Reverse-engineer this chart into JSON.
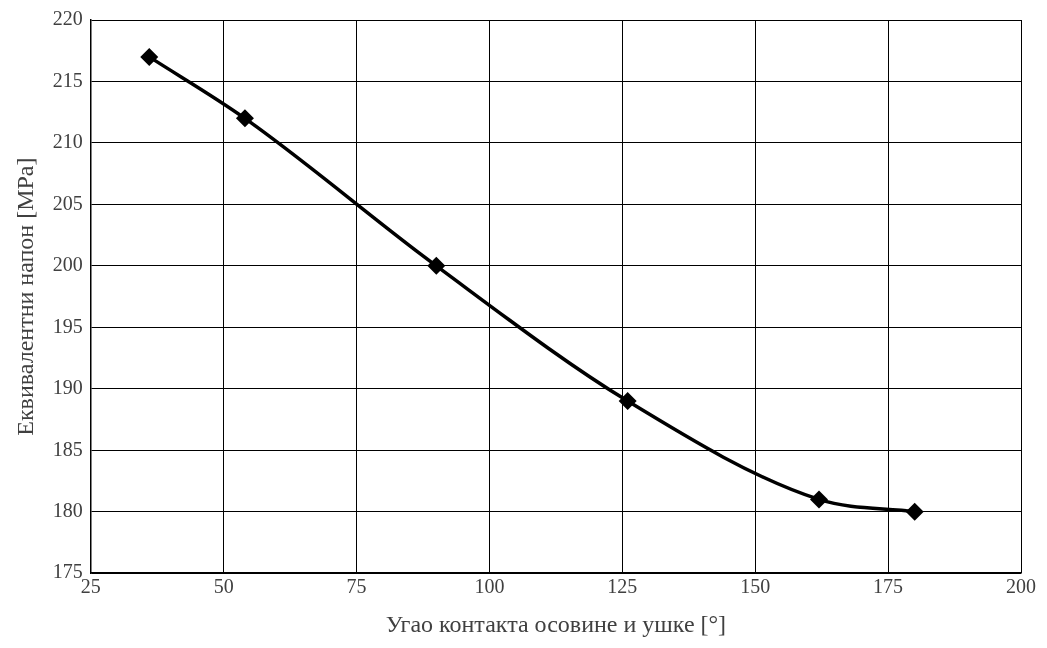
{
  "chart_data": {
    "type": "line",
    "xlabel": "Угао контакта осовине и ушке [°]",
    "ylabel": "Еквивалентни напон [MPa]",
    "x": [
      36,
      54,
      90,
      126,
      162,
      180
    ],
    "series": [
      {
        "color": "#000000",
        "values": [
          217,
          212,
          200,
          189,
          181,
          180
        ]
      }
    ],
    "xlim": [
      25,
      200
    ],
    "xticks": [
      25,
      50,
      75,
      100,
      125,
      150,
      175,
      200
    ],
    "ylim": [
      175,
      220
    ],
    "yticks": [
      175,
      180,
      185,
      190,
      195,
      200,
      205,
      210,
      215,
      220
    ],
    "grid": true,
    "legend": false,
    "marker": "diamond",
    "line_style": "solid"
  }
}
